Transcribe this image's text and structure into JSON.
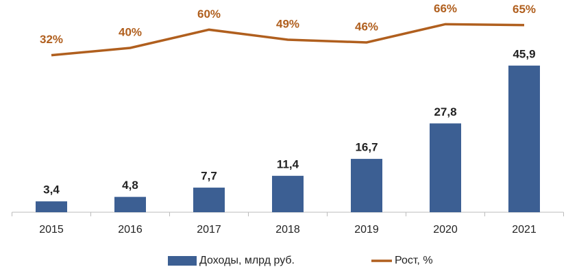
{
  "chart_data": {
    "type": "bar-line",
    "categories": [
      "2015",
      "2016",
      "2017",
      "2018",
      "2019",
      "2020",
      "2021"
    ],
    "series": [
      {
        "name": "Доходы, млрд руб.",
        "type": "bar",
        "color": "#3c5f93",
        "values": [
          3.4,
          4.8,
          7.7,
          11.4,
          16.7,
          27.8,
          45.9
        ],
        "value_labels": [
          "3,4",
          "4,8",
          "7,7",
          "11,4",
          "16,7",
          "27,8",
          "45,9"
        ]
      },
      {
        "name": "Рост, %",
        "type": "line",
        "axis": "y2",
        "color": "#b05f1e",
        "values": [
          32,
          40,
          60,
          49,
          46,
          66,
          65
        ],
        "value_labels": [
          "32%",
          "40%",
          "60%",
          "49%",
          "46%",
          "66%",
          "65%"
        ]
      }
    ],
    "ylim": [
      0,
      60
    ],
    "y2lim": [
      -140,
      70
    ],
    "legend": "bottom"
  }
}
